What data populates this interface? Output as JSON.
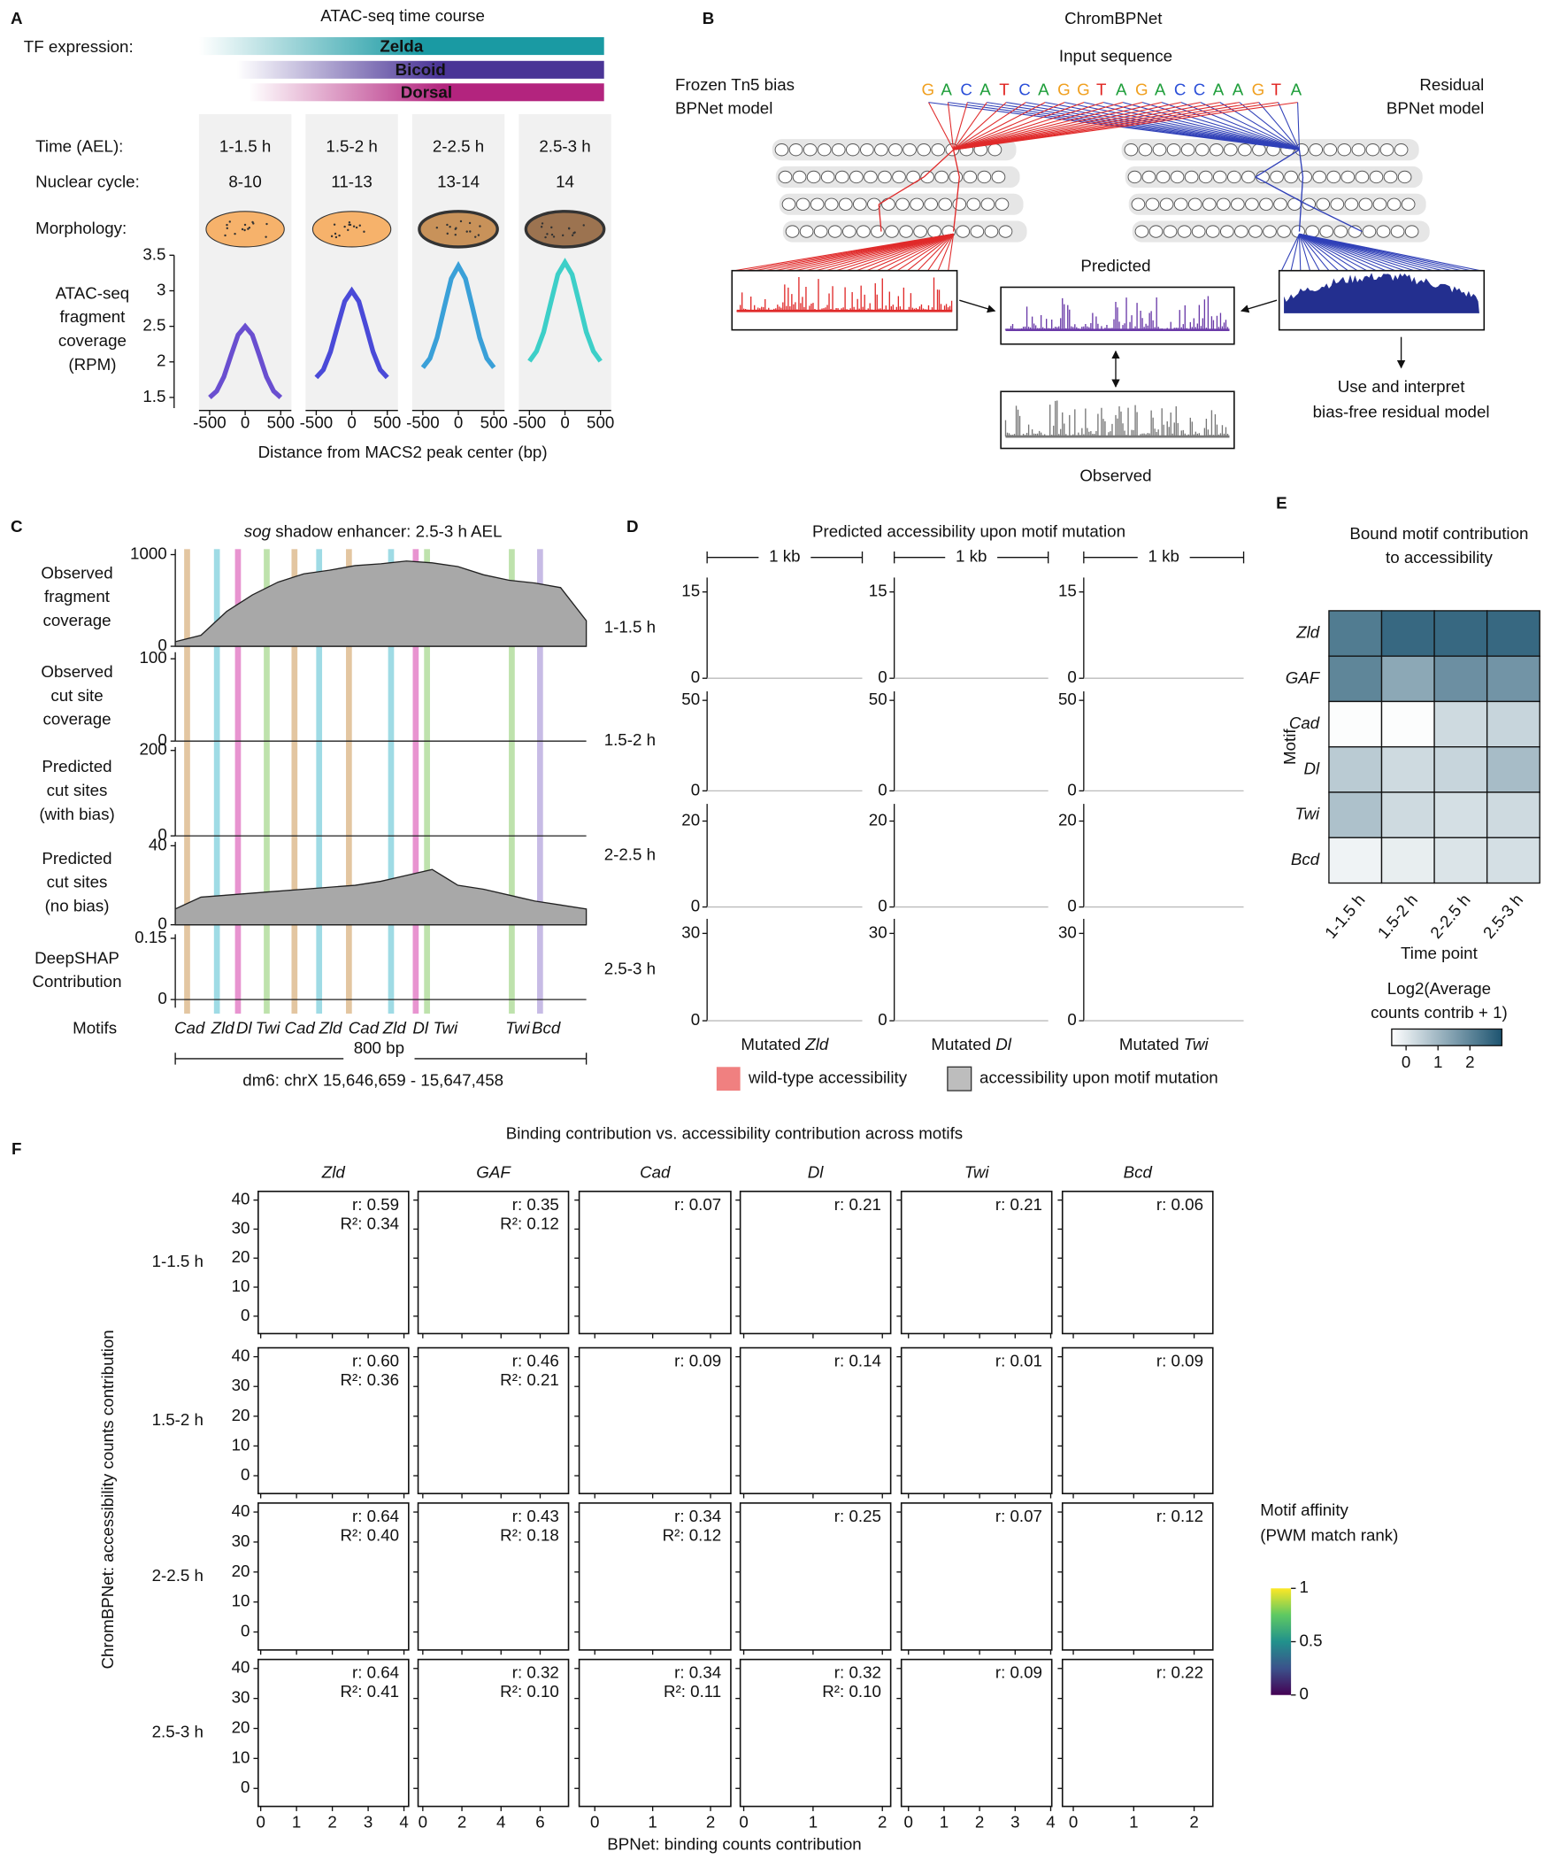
{
  "diagram_b": {
    "panel": "B",
    "title": "ChromBPNet",
    "input_label": "Input sequence",
    "sequence": "GACATCAGGTAGACCAAGTA",
    "nucleotide_colors": {
      "A": "#1e9e3a",
      "C": "#2b4fd8",
      "G": "#f0a020",
      "T": "#e0201c"
    },
    "bias_model": [
      "Frozen Tn5 bias",
      "BPNet model"
    ],
    "residual_model": [
      "Residual",
      "BPNet model"
    ],
    "predicted": "Predicted",
    "observed": "Observed",
    "use": [
      "Use and interpret",
      "bias-free residual model"
    ]
  },
  "chart_data": [
    {
      "type": "line",
      "panel": "A",
      "title": "ATAC-seq time course",
      "tf_label": "TF expression:",
      "tfs": [
        {
          "name": "Zelda",
          "color": "#1a9aa3"
        },
        {
          "name": "Bicoid",
          "color": "#4a3596"
        },
        {
          "name": "Dorsal",
          "color": "#b3247e"
        }
      ],
      "row_labels": [
        "Time (AEL):",
        "Nuclear cycle:",
        "Morphology:"
      ],
      "nuclear_cycles": [
        "8-10",
        "11-13",
        "13-14",
        "14"
      ],
      "embryo_colors": [
        "#f6b26b",
        "#f6b26b",
        "#c8925a",
        "#9c7350"
      ],
      "ylabel": [
        "ATAC-seq",
        "fragment",
        "coverage",
        "(RPM)"
      ],
      "xlabel": "Distance from MACS2 peak center (bp)",
      "x": [
        -500,
        -400,
        -300,
        -200,
        -100,
        0,
        100,
        200,
        300,
        400,
        500
      ],
      "xlim": [
        -650,
        650
      ],
      "xticks": [
        -500,
        0,
        500
      ],
      "ylim": [
        1.35,
        3.5
      ],
      "yticks": [
        1.5,
        2,
        2.5,
        3,
        3.5
      ],
      "series": [
        {
          "name": "1-1.5 h",
          "color": "#6a4fd0",
          "values": [
            1.5,
            1.59,
            1.79,
            2.09,
            2.38,
            2.5,
            2.38,
            2.09,
            1.79,
            1.59,
            1.5
          ]
        },
        {
          "name": "1.5-2 h",
          "color": "#4a4ad8",
          "values": [
            1.78,
            1.89,
            2.14,
            2.5,
            2.85,
            3.0,
            2.85,
            2.5,
            2.14,
            1.89,
            1.78
          ]
        },
        {
          "name": "2-2.5 h",
          "color": "#3aa0d8",
          "values": [
            1.92,
            2.05,
            2.34,
            2.76,
            3.17,
            3.35,
            3.17,
            2.76,
            2.34,
            2.05,
            1.92
          ]
        },
        {
          "name": "2.5-3 h",
          "color": "#3dcfc8",
          "values": [
            2.01,
            2.15,
            2.42,
            2.83,
            3.23,
            3.4,
            3.23,
            2.83,
            2.42,
            2.15,
            2.01
          ]
        }
      ]
    },
    {
      "type": "tracks",
      "panel": "C",
      "title": "sog shadow enhancer: 2.5-3 h AEL",
      "x": [
        0,
        50,
        100,
        150,
        200,
        250,
        300,
        350,
        400,
        450,
        500,
        550,
        600,
        650,
        700,
        750,
        800
      ],
      "xlim": [
        0,
        800
      ],
      "tracks": [
        {
          "label": [
            "Observed",
            "fragment",
            "coverage"
          ],
          "ylim": [
            0,
            1060
          ],
          "yticks": [
            0,
            1000
          ],
          "values": [
            50,
            120,
            380,
            560,
            700,
            790,
            830,
            880,
            900,
            930,
            910,
            870,
            780,
            720,
            690,
            640,
            280
          ]
        },
        {
          "label": [
            "Observed",
            "cut site",
            "coverage"
          ],
          "ylim": [
            0,
            108
          ],
          "yticks": [
            0,
            100
          ]
        },
        {
          "label": [
            "Predicted",
            "cut sites",
            "(with bias)"
          ],
          "ylim": [
            0,
            208
          ],
          "yticks": [
            0,
            200
          ]
        },
        {
          "label": [
            "Predicted",
            "cut sites",
            "(no bias)"
          ],
          "ylim": [
            0,
            42
          ],
          "yticks": [
            0,
            40
          ],
          "values": [
            8,
            14,
            15,
            16,
            17,
            18,
            19,
            20,
            22,
            25,
            28,
            20,
            18,
            15,
            12,
            10,
            8
          ]
        },
        {
          "label": [
            "DeepSHAP",
            "Contribution"
          ],
          "ylim": [
            -0.02,
            0.16
          ],
          "yticks": [
            0,
            0.15
          ]
        }
      ],
      "motif_label": "Motifs",
      "motif_colors": {
        "Cad": "#d9b382",
        "Zld": "#7fcfdc",
        "Dl": "#e070c0",
        "Twi": "#a8d890",
        "Bcd": "#b4a4dc"
      },
      "motifs": [
        {
          "name": "Cad",
          "x": 23
        },
        {
          "name": "Zld",
          "x": 81
        },
        {
          "name": "Dl",
          "x": 122
        },
        {
          "name": "Twi",
          "x": 178
        },
        {
          "name": "Cad",
          "x": 232
        },
        {
          "name": "Zld",
          "x": 280
        },
        {
          "name": "Cad",
          "x": 338
        },
        {
          "name": "Zld",
          "x": 420
        },
        {
          "name": "Dl",
          "x": 468
        },
        {
          "name": "Twi",
          "x": 490
        },
        {
          "name": "Twi",
          "x": 655
        },
        {
          "name": "Bcd",
          "x": 710
        }
      ],
      "scale_label": "800 bp",
      "region": "dm6: chrX 15,646,659 - 15,647,458"
    },
    {
      "type": "area",
      "panel": "D",
      "title": "Predicted accessibility upon motif mutation",
      "scale_label": "1 kb",
      "rows": [
        {
          "name": "1-1.5 h",
          "ylim": [
            0,
            17.5
          ],
          "yticks": [
            0,
            15
          ]
        },
        {
          "name": "1.5-2 h",
          "ylim": [
            0,
            55
          ],
          "yticks": [
            0,
            50
          ]
        },
        {
          "name": "2-2.5 h",
          "ylim": [
            0,
            24
          ],
          "yticks": [
            0,
            20
          ]
        },
        {
          "name": "2.5-3 h",
          "ylim": [
            0,
            35
          ],
          "yticks": [
            0,
            30
          ]
        }
      ],
      "columns": [
        "Mutated Zld",
        "Mutated Dl",
        "Mutated Twi"
      ],
      "series": [
        {
          "name": "wild-type accessibility",
          "color": "#f08080"
        },
        {
          "name": "accessibility upon motif mutation",
          "color": "#bdbdbd"
        }
      ]
    },
    {
      "type": "heatmap",
      "panel": "E",
      "title": [
        "Bound motif contribution",
        "to accessibility"
      ],
      "categories": [
        "1-1.5 h",
        "1.5-2 h",
        "2-2.5 h",
        "2.5-3 h"
      ],
      "rows": [
        "Zld",
        "GAF",
        "Cad",
        "Dl",
        "Twi",
        "Bcd"
      ],
      "values": [
        [
          2.2,
          2.6,
          2.6,
          2.6
        ],
        [
          2.0,
          1.3,
          1.8,
          1.7
        ],
        [
          -0.4,
          -0.4,
          0.3,
          0.4
        ],
        [
          0.6,
          0.3,
          0.4,
          0.9
        ],
        [
          0.8,
          0.3,
          0.2,
          0.3
        ],
        [
          -0.2,
          -0.1,
          0.1,
          0.2
        ]
      ],
      "ylabel": "Motif",
      "xlabel": "Time point",
      "colorbar_title": [
        "Log2(Average",
        "counts contrib + 1)"
      ],
      "clim": [
        -0.45,
        3.0
      ],
      "cticks": [
        0,
        1,
        2
      ],
      "colors": [
        "#ffffff",
        "#1d5470"
      ]
    },
    {
      "type": "scatter",
      "panel": "F",
      "title": "Binding contribution vs. accessibility contribution across motifs",
      "motifs": [
        {
          "name": "Zld",
          "xlim": [
            -0.07,
            4.13
          ],
          "xticks": [
            0,
            1,
            2,
            3,
            4
          ]
        },
        {
          "name": "GAF",
          "xlim": [
            -0.24,
            7.45
          ],
          "xticks": [
            0,
            2,
            4,
            6
          ]
        },
        {
          "name": "Cad",
          "xlim": [
            -0.27,
            2.35
          ],
          "xticks": [
            0,
            1,
            2
          ]
        },
        {
          "name": "Dl",
          "xlim": [
            -0.05,
            2.12
          ],
          "xticks": [
            0,
            1,
            2
          ]
        },
        {
          "name": "Twi",
          "xlim": [
            -0.2,
            4.03
          ],
          "xticks": [
            0,
            1,
            2,
            3,
            4
          ]
        },
        {
          "name": "Bcd",
          "xlim": [
            -0.18,
            2.31
          ],
          "xticks": [
            0,
            1,
            2
          ]
        }
      ],
      "rows": [
        "1-1.5 h",
        "1.5-2 h",
        "2-2.5 h",
        "2.5-3 h"
      ],
      "ylim": [
        -6,
        43
      ],
      "yticks": [
        0,
        10,
        20,
        30,
        40
      ],
      "ylabel": "ChromBPNet: accessibility counts contribution",
      "xlabel": "BPNet: binding counts contribution",
      "annotations": [
        [
          [
            "r: 0.59",
            "R²: 0.34"
          ],
          [
            "r: 0.35",
            "R²: 0.12"
          ],
          [
            "r: 0.07"
          ],
          [
            "r: 0.21"
          ],
          [
            "r: 0.21"
          ],
          [
            "r: 0.06"
          ]
        ],
        [
          [
            "r: 0.60",
            "R²: 0.36"
          ],
          [
            "r: 0.46",
            "R²: 0.21"
          ],
          [
            "r: 0.09"
          ],
          [
            "r: 0.14"
          ],
          [
            "r: 0.01"
          ],
          [
            "r: 0.09"
          ]
        ],
        [
          [
            "r: 0.64",
            "R²: 0.40"
          ],
          [
            "r: 0.43",
            "R²: 0.18"
          ],
          [
            "r: 0.34",
            "R²: 0.12"
          ],
          [
            "r: 0.25"
          ],
          [
            "r: 0.07"
          ],
          [
            "r: 0.12"
          ]
        ],
        [
          [
            "r: 0.64",
            "R²: 0.41"
          ],
          [
            "r: 0.32",
            "R²: 0.10"
          ],
          [
            "r: 0.34",
            "R²: 0.11"
          ],
          [
            "r: 0.32",
            "R²: 0.10"
          ],
          [
            "r: 0.09"
          ],
          [
            "r: 0.22"
          ]
        ]
      ],
      "colorbar": {
        "title": [
          "Motif affinity",
          "(PWM match rank)"
        ],
        "lim": [
          0,
          1
        ],
        "ticks": [
          0,
          0.5,
          1
        ],
        "colors": [
          "#440154",
          "#3b528b",
          "#21918c",
          "#5ec962",
          "#fde725"
        ]
      }
    }
  ]
}
